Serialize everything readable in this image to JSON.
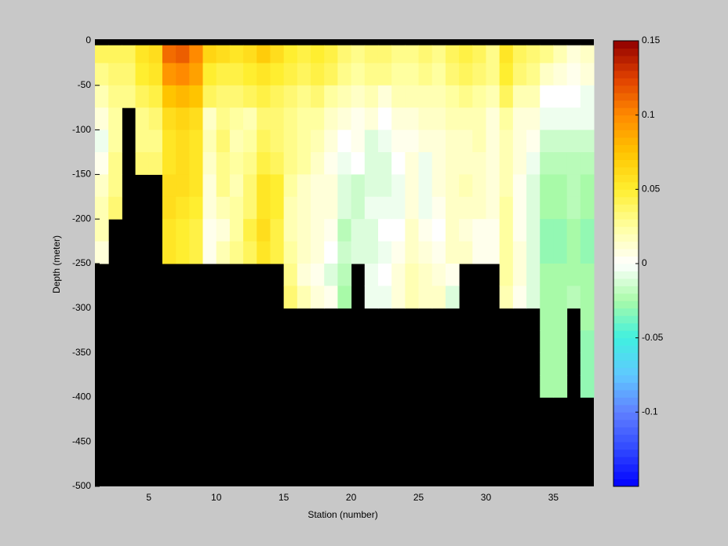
{
  "chart_data": {
    "type": "heatmap",
    "xlabel": "Station (number)",
    "ylabel": "Depth (meter)",
    "xlim": [
      1,
      38
    ],
    "ylim": [
      -500,
      0
    ],
    "xticks": [
      5,
      10,
      15,
      20,
      25,
      30,
      35
    ],
    "yticks": [
      -500,
      -450,
      -400,
      -350,
      -300,
      -250,
      -200,
      -150,
      -100,
      -50,
      0
    ],
    "x_edges": [
      1,
      2,
      3,
      4,
      5,
      6,
      7,
      8,
      9,
      10,
      11,
      12,
      13,
      14,
      15,
      16,
      17,
      18,
      19,
      20,
      21,
      22,
      23,
      24,
      25,
      26,
      27,
      28,
      29,
      30,
      31,
      32,
      33,
      34,
      35,
      36,
      37,
      38
    ],
    "y_edges": [
      -5,
      -25,
      -50,
      -75,
      -100,
      -125,
      -150,
      -175,
      -200,
      -225,
      -250,
      -275,
      -300,
      -325,
      -350,
      -375,
      -400
    ],
    "mask_color": "#000000",
    "clim": [
      -0.15,
      0.15
    ],
    "cticks": [
      -0.1,
      -0.05,
      0,
      0.05,
      0.1,
      0.15
    ],
    "colormap": [
      "#0000ff",
      "#3048ff",
      "#6080ff",
      "#60c8ff",
      "#40f0e0",
      "#a8faa8",
      "#ffffff",
      "#ffffa0",
      "#ffee30",
      "#ffc400",
      "#ff8a00",
      "#e04000",
      "#900000"
    ],
    "z": [
      [
        0.04,
        0.03,
        0.02,
        0.01,
        -0.005,
        0.005,
        0.015,
        0.02,
        0.02,
        0.01,
        null,
        null,
        null,
        null,
        null,
        null
      ],
      [
        0.04,
        0.035,
        0.03,
        0.025,
        0.025,
        0.03,
        0.03,
        0.035,
        null,
        null,
        null,
        null,
        null,
        null,
        null,
        null
      ],
      [
        0.04,
        0.035,
        0.03,
        null,
        null,
        null,
        null,
        null,
        null,
        null,
        null,
        null,
        null,
        null,
        null,
        null
      ],
      [
        0.055,
        0.05,
        0.04,
        0.03,
        0.03,
        0.035,
        null,
        null,
        null,
        null,
        null,
        null,
        null,
        null,
        null,
        null
      ],
      [
        0.06,
        0.055,
        0.045,
        0.035,
        0.03,
        0.035,
        null,
        null,
        null,
        null,
        null,
        null,
        null,
        null,
        null,
        null
      ],
      [
        0.11,
        0.095,
        0.075,
        0.06,
        0.055,
        0.055,
        0.06,
        0.06,
        0.055,
        0.055,
        null,
        null,
        null,
        null,
        null,
        null
      ],
      [
        0.115,
        0.1,
        0.08,
        0.065,
        0.06,
        0.06,
        0.06,
        0.055,
        0.05,
        0.05,
        null,
        null,
        null,
        null,
        null,
        null
      ],
      [
        0.1,
        0.09,
        0.075,
        0.06,
        0.055,
        0.055,
        0.055,
        0.05,
        0.045,
        0.045,
        null,
        null,
        null,
        null,
        null,
        null
      ],
      [
        0.065,
        0.05,
        0.04,
        0.015,
        0.02,
        0.015,
        0.01,
        0.01,
        0.005,
        0.005,
        null,
        null,
        null,
        null,
        null,
        null
      ],
      [
        0.06,
        0.045,
        0.035,
        0.03,
        0.035,
        0.03,
        0.03,
        0.02,
        0.01,
        0.02,
        null,
        null,
        null,
        null,
        null,
        null
      ],
      [
        0.055,
        0.045,
        0.035,
        0.025,
        0.02,
        0.025,
        0.02,
        0.025,
        0.025,
        0.03,
        null,
        null,
        null,
        null,
        null,
        null
      ],
      [
        0.06,
        0.05,
        0.04,
        0.02,
        0.025,
        0.03,
        0.035,
        0.035,
        0.045,
        0.04,
        null,
        null,
        null,
        null,
        null,
        null
      ],
      [
        0.07,
        0.055,
        0.045,
        0.035,
        0.04,
        0.045,
        0.055,
        0.055,
        0.06,
        0.055,
        null,
        null,
        null,
        null,
        null,
        null
      ],
      [
        0.06,
        0.05,
        0.04,
        0.035,
        0.035,
        0.04,
        0.05,
        0.05,
        0.045,
        0.045,
        null,
        null,
        null,
        null,
        null,
        null
      ],
      [
        0.05,
        0.045,
        0.035,
        0.03,
        0.03,
        0.03,
        0.025,
        0.02,
        0.02,
        0.025,
        0.03,
        0.035,
        null,
        null,
        null,
        null
      ],
      [
        0.045,
        0.04,
        0.03,
        0.025,
        0.025,
        0.025,
        0.015,
        0.015,
        0.015,
        0.015,
        0.01,
        0.02,
        null,
        null,
        null,
        null
      ],
      [
        0.05,
        0.045,
        0.035,
        0.025,
        0.02,
        0.015,
        0.01,
        0.01,
        0.01,
        0.01,
        0.005,
        0.01,
        null,
        null,
        null,
        null
      ],
      [
        0.045,
        0.04,
        0.025,
        0.015,
        0.01,
        0.005,
        0.01,
        0.01,
        0.005,
        0,
        -0.01,
        0.005,
        null,
        null,
        null,
        null
      ],
      [
        0.035,
        0.03,
        0.02,
        0.01,
        0,
        -0.005,
        -0.01,
        -0.01,
        -0.02,
        -0.015,
        -0.02,
        -0.025,
        null,
        null,
        null,
        null
      ],
      [
        0.03,
        0.025,
        0.015,
        0.005,
        0.005,
        0,
        -0.015,
        -0.015,
        -0.01,
        -0.01,
        null,
        null,
        null,
        null,
        null,
        null
      ],
      [
        0.035,
        0.03,
        0.02,
        0.01,
        -0.01,
        -0.01,
        -0.01,
        -0.005,
        -0.01,
        -0.01,
        -0.005,
        -0.005,
        null,
        null,
        null,
        null
      ],
      [
        0.035,
        0.03,
        0.01,
        0,
        -0.005,
        -0.01,
        -0.01,
        -0.005,
        0,
        -0.005,
        0,
        -0.005,
        null,
        null,
        null,
        null
      ],
      [
        0.03,
        0.025,
        0.02,
        0.01,
        0.005,
        0,
        -0.005,
        -0.005,
        0,
        0.005,
        0.01,
        0.01,
        null,
        null,
        null,
        null
      ],
      [
        0.03,
        0.025,
        0.02,
        0.01,
        0.005,
        0.01,
        0.01,
        0.01,
        0.015,
        0.015,
        0.02,
        0.02,
        null,
        null,
        null,
        null
      ],
      [
        0.035,
        0.03,
        0.02,
        0.015,
        0.01,
        -0.005,
        -0.005,
        -0.005,
        0.005,
        0.01,
        0.015,
        0.015,
        null,
        null,
        null,
        null
      ],
      [
        0.03,
        0.025,
        0.02,
        0.015,
        0.01,
        0.01,
        0.01,
        0.005,
        0,
        0.005,
        0.01,
        0.015,
        null,
        null,
        null,
        null
      ],
      [
        0.04,
        0.035,
        0.025,
        0.02,
        0.015,
        0.015,
        0.015,
        0.015,
        0.015,
        0.015,
        0.005,
        -0.01,
        null,
        null,
        null,
        null
      ],
      [
        0.045,
        0.04,
        0.03,
        0.02,
        0.015,
        0.015,
        0.02,
        0.015,
        0.01,
        0.015,
        null,
        null,
        null,
        null,
        null,
        null
      ],
      [
        0.04,
        0.035,
        0.025,
        0.02,
        0.02,
        0.015,
        0.015,
        0.015,
        0.005,
        0.005,
        null,
        null,
        null,
        null,
        null,
        null
      ],
      [
        0.03,
        0.03,
        0.02,
        0.01,
        0.01,
        0.01,
        0.01,
        0.01,
        0.005,
        0.005,
        null,
        null,
        null,
        null,
        null,
        null
      ],
      [
        0.055,
        0.05,
        0.04,
        0.025,
        0.02,
        0.02,
        0.02,
        0.025,
        0.025,
        0.025,
        0.025,
        0.02,
        null,
        null,
        null,
        null
      ],
      [
        0.04,
        0.035,
        0.02,
        0.01,
        0.01,
        0.01,
        0.005,
        0.005,
        0.005,
        0.01,
        0.01,
        0.005,
        null,
        null,
        null,
        null
      ],
      [
        0.035,
        0.03,
        0.02,
        0.01,
        0.005,
        -0.005,
        -0.01,
        -0.01,
        -0.01,
        -0.01,
        -0.01,
        -0.01,
        null,
        null,
        null,
        null
      ],
      [
        0.03,
        0.015,
        0,
        -0.005,
        -0.015,
        -0.02,
        -0.025,
        -0.025,
        -0.03,
        -0.03,
        -0.025,
        -0.025,
        -0.025,
        -0.025,
        -0.025,
        -0.025
      ],
      [
        0.02,
        0.01,
        0,
        -0.005,
        -0.015,
        -0.02,
        -0.025,
        -0.025,
        -0.03,
        -0.03,
        -0.025,
        -0.025,
        -0.025,
        -0.025,
        -0.025,
        -0.025
      ],
      [
        0.01,
        0.005,
        0,
        -0.005,
        -0.015,
        -0.02,
        -0.02,
        -0.02,
        -0.025,
        -0.025,
        -0.025,
        -0.02,
        null,
        null,
        null,
        null
      ],
      [
        0.015,
        0.01,
        -0.005,
        -0.005,
        -0.015,
        -0.02,
        -0.025,
        -0.025,
        -0.03,
        -0.03,
        -0.025,
        -0.025,
        -0.025,
        -0.03,
        -0.03,
        -0.03
      ]
    ]
  }
}
